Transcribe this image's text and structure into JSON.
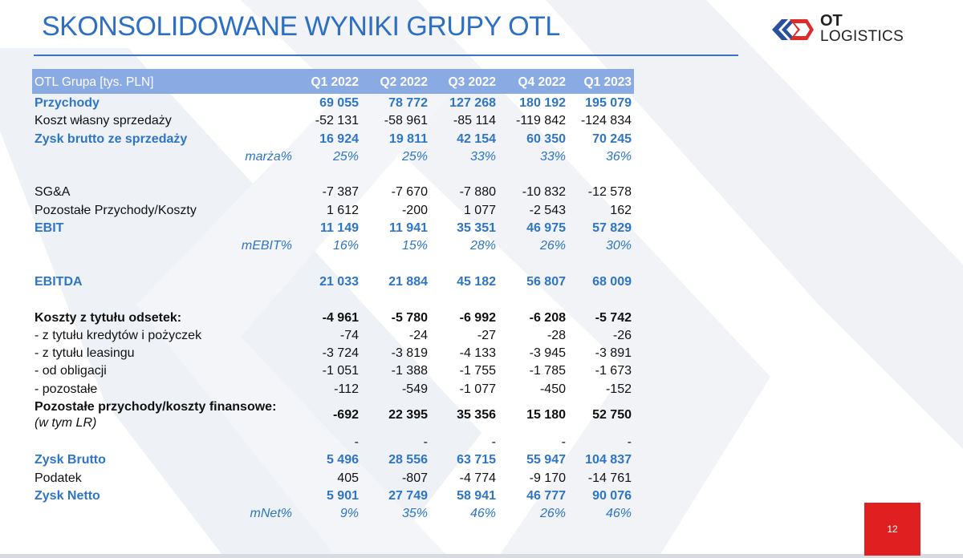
{
  "slide": {
    "title": "SKONSOLIDOWANE WYNIKI GRUPY OTL",
    "page_number": "12"
  },
  "logo": {
    "line1": "OT",
    "line2": "LOGISTICS",
    "colors": {
      "blue": "#2a4f9e",
      "red": "#e02a2a"
    }
  },
  "table": {
    "header": {
      "label": "OTL Grupa [tys. PLN]",
      "periods": [
        "Q1 2022",
        "Q2 2022",
        "Q3 2022",
        "Q4 2022",
        "Q1 2023"
      ]
    },
    "rows": [
      {
        "label": "Przychody",
        "values": [
          "69 055",
          "78 772",
          "127 268",
          "180 192",
          "195 079"
        ]
      },
      {
        "label": "Koszt własny sprzedaży",
        "values": [
          "-52 131",
          "-58 961",
          "-85 114",
          "-119 842",
          "-124 834"
        ]
      },
      {
        "label": "Zysk brutto ze sprzedaży",
        "values": [
          "16 924",
          "19 811",
          "42 154",
          "60 350",
          "70 245"
        ]
      },
      {
        "label": "marża%",
        "values": [
          "25%",
          "25%",
          "33%",
          "33%",
          "36%"
        ]
      },
      {
        "label": "SG&A",
        "values": [
          "-7 387",
          "-7 670",
          "-7 880",
          "-10 832",
          "-12 578"
        ]
      },
      {
        "label": "Pozostałe Przychody/Koszty",
        "values": [
          "1 612",
          "-200",
          "1 077",
          "-2 543",
          "162"
        ]
      },
      {
        "label": "EBIT",
        "values": [
          "11 149",
          "11 941",
          "35 351",
          "46 975",
          "57 829"
        ]
      },
      {
        "label": "mEBIT%",
        "values": [
          "16%",
          "15%",
          "28%",
          "26%",
          "30%"
        ]
      },
      {
        "label": "EBITDA",
        "values": [
          "21 033",
          "21 884",
          "45 182",
          "56 807",
          "68 009"
        ]
      },
      {
        "label": "Koszty z tytułu odsetek:",
        "values": [
          "-4 961",
          "-5 780",
          "-6 992",
          "-6 208",
          "-5 742"
        ]
      },
      {
        "label": "- z tytułu kredytów i pożyczek",
        "values": [
          "-74",
          "-24",
          "-27",
          "-28",
          "-26"
        ]
      },
      {
        "label": "- z tytułu leasingu",
        "values": [
          "-3 724",
          "-3 819",
          "-4 133",
          "-3 945",
          "-3 891"
        ]
      },
      {
        "label": "- od obligacji",
        "values": [
          "-1 051",
          "-1 388",
          "-1 755",
          "-1 785",
          "-1 673"
        ]
      },
      {
        "label": "- pozostałe",
        "values": [
          "-112",
          "-549",
          "-1 077",
          "-450",
          "-152"
        ]
      },
      {
        "label": "Pozostałe przychody/koszty finansowe:",
        "sublabel": "(w tym LR)",
        "values": [
          "-692",
          "22 395",
          "35 356",
          "15 180",
          "52 750"
        ]
      },
      {
        "label": "",
        "values": [
          "-",
          "-",
          "-",
          "-",
          "-"
        ]
      },
      {
        "label": "Zysk Brutto",
        "values": [
          "5 496",
          "28 556",
          "63 715",
          "55 947",
          "104 837"
        ]
      },
      {
        "label": "Podatek",
        "values": [
          "405",
          "-807",
          "-4 774",
          "-9 170",
          "-14 761"
        ]
      },
      {
        "label": "Zysk Netto",
        "values": [
          "5 901",
          "27 749",
          "58 941",
          "46 777",
          "90 076"
        ]
      },
      {
        "label": "mNet%",
        "values": [
          "9%",
          "35%",
          "46%",
          "26%",
          "46%"
        ]
      }
    ]
  }
}
